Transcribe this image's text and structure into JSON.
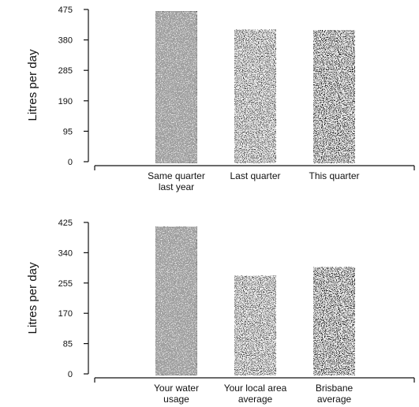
{
  "chart_data": [
    {
      "type": "bar",
      "ylabel": "Litres per day",
      "yticks": [
        0,
        95,
        190,
        285,
        380,
        475
      ],
      "ylim": [
        0,
        475
      ],
      "categories": [
        "Same quarter\nlast year",
        "Last quarter",
        "This quarter"
      ],
      "values": [
        470,
        412,
        410
      ],
      "colors": [
        "#f2f2f2",
        "#3a3a3a",
        "#050505"
      ],
      "grid": false
    },
    {
      "type": "bar",
      "ylabel": "Litres per day",
      "yticks": [
        0,
        85,
        170,
        255,
        340,
        425
      ],
      "ylim": [
        0,
        425
      ],
      "categories": [
        "Your water\nusage",
        "Your local area\naverage",
        "Brisbane\naverage"
      ],
      "values": [
        412,
        275,
        299
      ],
      "colors": [
        "#f2f2f2",
        "#3a3a3a",
        "#050505"
      ],
      "grid": false
    }
  ]
}
